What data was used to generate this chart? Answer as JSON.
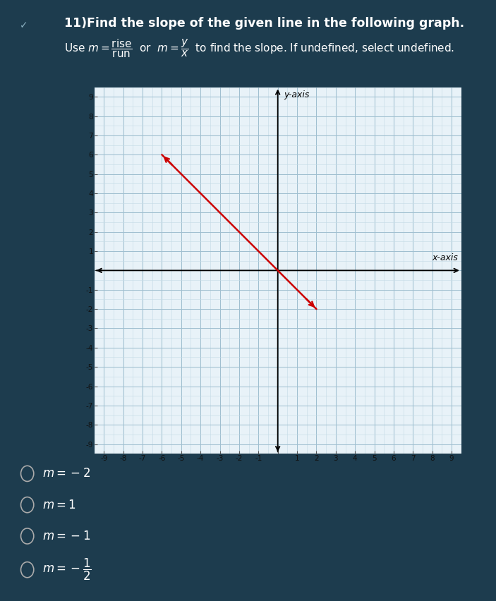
{
  "background_color": "#1d3c4e",
  "graph_bg_color": "#e8f2f8",
  "grid_major_color": "#a0bfd0",
  "grid_minor_color": "#c4dae6",
  "axis_color": "#000000",
  "line_color": "#cc0000",
  "line_x": [
    -6.0,
    2.0
  ],
  "line_y": [
    6.0,
    -2.0
  ],
  "xmin": -9.5,
  "xmax": 9.5,
  "ymin": -9.5,
  "ymax": 9.5,
  "xlabel": "x-axis",
  "ylabel": "y-axis",
  "title_line1": "11) Find the slope of the given line in the following graph.",
  "title_fontsize": 12.5,
  "subtitle_fontsize": 11,
  "choice_fontsize": 12
}
